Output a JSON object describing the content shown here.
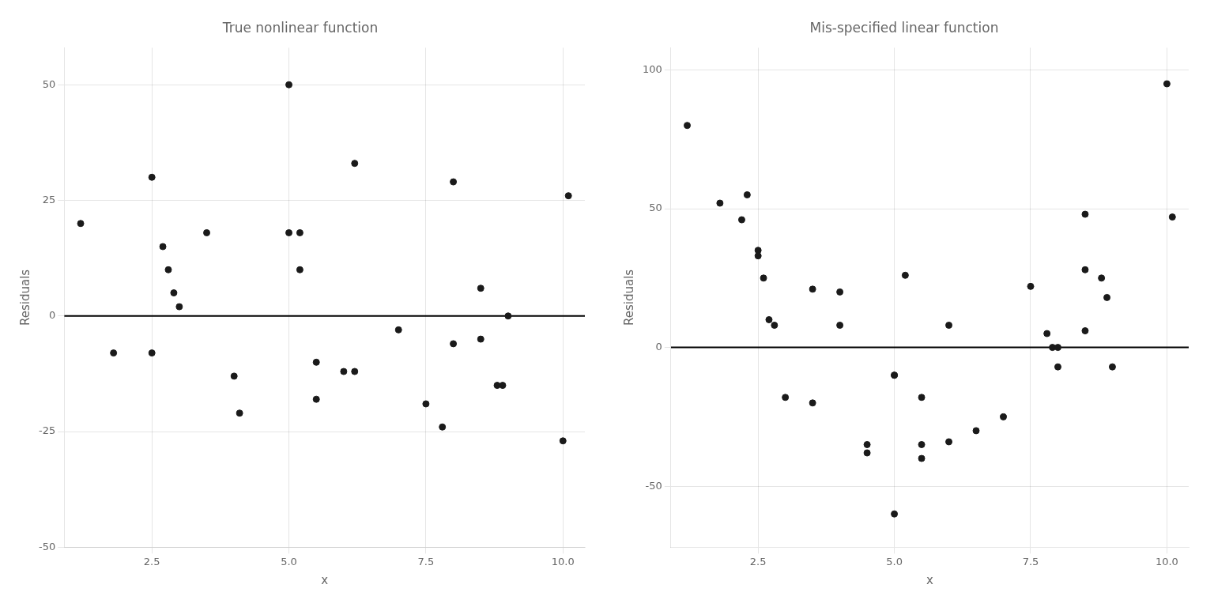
{
  "chart_data": [
    {
      "type": "scatter",
      "title": "True nonlinear function",
      "xlabel": "x",
      "ylabel": "Residuals",
      "x": [
        1.2,
        1.8,
        2.5,
        2.5,
        2.7,
        2.8,
        2.9,
        3.0,
        3.5,
        4.0,
        4.1,
        5.0,
        5.0,
        5.2,
        5.2,
        5.5,
        5.5,
        6.0,
        6.2,
        6.2,
        7.0,
        7.5,
        7.8,
        8.0,
        8.0,
        8.5,
        8.5,
        8.8,
        8.9,
        9.0,
        10.0,
        10.1
      ],
      "values": [
        20,
        -8,
        30,
        -8,
        15,
        10,
        5,
        2,
        18,
        -13,
        -21,
        50,
        18,
        18,
        10,
        -10,
        -18,
        -12,
        -12,
        33,
        -3,
        -19,
        -24,
        29,
        -6,
        -5,
        6,
        -15,
        -15,
        0,
        -27,
        26
      ],
      "color": "#1a1a1a",
      "hline": {
        "y": 0,
        "color": "#000000"
      },
      "xlim": [
        0.9,
        10.4
      ],
      "xticks": [
        2.5,
        {
          "value": 5.0,
          "label": "5.0"
        },
        7.5,
        {
          "value": 10.0,
          "label": "10.0"
        }
      ],
      "ylim": [
        -50,
        58
      ],
      "yticks": [
        -50,
        -25,
        0,
        25,
        50
      ],
      "grid": true
    },
    {
      "type": "scatter",
      "title": "Mis-specified linear function",
      "xlabel": "x",
      "ylabel": "Residuals",
      "x": [
        1.2,
        1.8,
        2.2,
        2.3,
        2.5,
        2.5,
        2.6,
        2.7,
        2.8,
        3.0,
        3.5,
        3.5,
        4.0,
        4.0,
        4.5,
        4.5,
        5.0,
        5.0,
        5.0,
        5.2,
        5.5,
        5.5,
        5.5,
        6.0,
        6.0,
        6.5,
        7.0,
        7.5,
        7.8,
        7.9,
        8.0,
        8.0,
        8.5,
        8.5,
        8.5,
        8.8,
        8.9,
        9.0,
        10.0,
        10.1
      ],
      "values": [
        80,
        52,
        46,
        55,
        35,
        33,
        25,
        10,
        8,
        -18,
        -20,
        21,
        20,
        8,
        -35,
        -38,
        -10,
        -10,
        -60,
        26,
        -18,
        -35,
        -40,
        8,
        -34,
        -30,
        -25,
        22,
        5,
        0,
        -7,
        0,
        48,
        28,
        6,
        25,
        18,
        -7,
        95,
        47
      ],
      "color": "#1a1a1a",
      "hline": {
        "y": 0,
        "color": "#000000"
      },
      "xlim": [
        0.9,
        10.4
      ],
      "xticks": [
        2.5,
        {
          "value": 5.0,
          "label": "5.0"
        },
        7.5,
        {
          "value": 10.0,
          "label": "10.0"
        }
      ],
      "ylim": [
        -72,
        108
      ],
      "yticks": [
        -50,
        0,
        50,
        100
      ],
      "grid": true
    }
  ]
}
